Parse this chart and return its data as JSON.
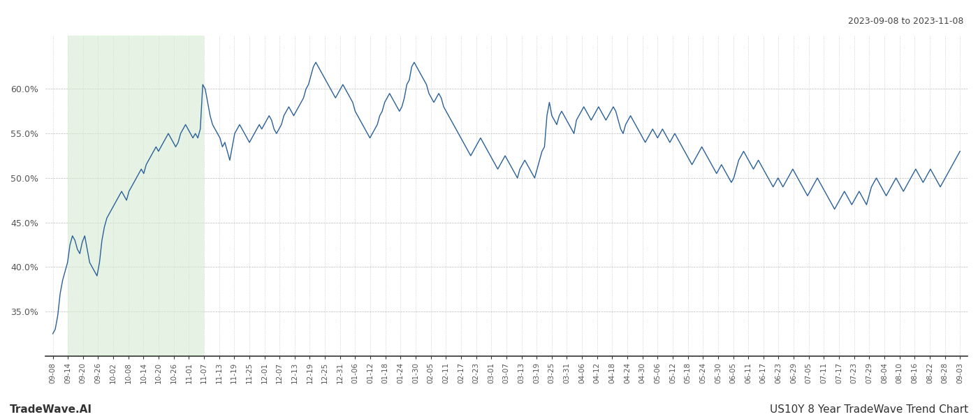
{
  "title_top_right": "2023-09-08 to 2023-11-08",
  "title_bottom_left": "TradeWave.AI",
  "title_bottom_right": "US10Y 8 Year TradeWave Trend Chart",
  "line_color": "#2a6099",
  "shade_color": "#d6ecd2",
  "shade_alpha": 0.6,
  "ylim": [
    30.0,
    66.0
  ],
  "yticks": [
    35.0,
    40.0,
    45.0,
    50.0,
    55.0,
    60.0
  ],
  "x_labels": [
    "09-08",
    "09-14",
    "09-20",
    "09-26",
    "10-02",
    "10-08",
    "10-14",
    "10-20",
    "10-26",
    "11-01",
    "11-07",
    "11-13",
    "11-19",
    "11-25",
    "12-01",
    "12-07",
    "12-13",
    "12-19",
    "12-25",
    "12-31",
    "01-06",
    "01-12",
    "01-18",
    "01-24",
    "01-30",
    "02-05",
    "02-11",
    "02-17",
    "02-23",
    "03-01",
    "03-07",
    "03-13",
    "03-19",
    "03-25",
    "03-31",
    "04-06",
    "04-12",
    "04-18",
    "04-24",
    "04-30",
    "05-06",
    "05-12",
    "05-18",
    "05-24",
    "05-30",
    "06-05",
    "06-11",
    "06-17",
    "06-23",
    "06-29",
    "07-05",
    "07-11",
    "07-17",
    "07-23",
    "07-29",
    "08-04",
    "08-10",
    "08-16",
    "08-22",
    "08-28",
    "09-03"
  ],
  "shade_start_label": "09-14",
  "shade_end_label": "11-07",
  "y_values": [
    32.5,
    33.0,
    34.5,
    37.0,
    38.5,
    39.5,
    40.5,
    42.5,
    43.5,
    43.0,
    42.0,
    41.5,
    42.8,
    43.5,
    42.0,
    40.5,
    40.0,
    39.5,
    39.0,
    40.5,
    43.0,
    44.5,
    45.5,
    46.0,
    46.5,
    47.0,
    47.5,
    48.0,
    48.5,
    48.0,
    47.5,
    48.5,
    49.0,
    49.5,
    50.0,
    50.5,
    51.0,
    50.5,
    51.5,
    52.0,
    52.5,
    53.0,
    53.5,
    53.0,
    53.5,
    54.0,
    54.5,
    55.0,
    54.5,
    54.0,
    53.5,
    54.0,
    55.0,
    55.5,
    56.0,
    55.5,
    55.0,
    54.5,
    55.0,
    54.5,
    55.5,
    60.5,
    60.0,
    58.5,
    57.0,
    56.0,
    55.5,
    55.0,
    54.5,
    53.5,
    54.0,
    53.0,
    52.0,
    53.5,
    55.0,
    55.5,
    56.0,
    55.5,
    55.0,
    54.5,
    54.0,
    54.5,
    55.0,
    55.5,
    56.0,
    55.5,
    56.0,
    56.5,
    57.0,
    56.5,
    55.5,
    55.0,
    55.5,
    56.0,
    57.0,
    57.5,
    58.0,
    57.5,
    57.0,
    57.5,
    58.0,
    58.5,
    59.0,
    60.0,
    60.5,
    61.5,
    62.5,
    63.0,
    62.5,
    62.0,
    61.5,
    61.0,
    60.5,
    60.0,
    59.5,
    59.0,
    59.5,
    60.0,
    60.5,
    60.0,
    59.5,
    59.0,
    58.5,
    57.5,
    57.0,
    56.5,
    56.0,
    55.5,
    55.0,
    54.5,
    55.0,
    55.5,
    56.0,
    57.0,
    57.5,
    58.5,
    59.0,
    59.5,
    59.0,
    58.5,
    58.0,
    57.5,
    58.0,
    59.0,
    60.5,
    61.0,
    62.5,
    63.0,
    62.5,
    62.0,
    61.5,
    61.0,
    60.5,
    59.5,
    59.0,
    58.5,
    59.0,
    59.5,
    59.0,
    58.0,
    57.5,
    57.0,
    56.5,
    56.0,
    55.5,
    55.0,
    54.5,
    54.0,
    53.5,
    53.0,
    52.5,
    53.0,
    53.5,
    54.0,
    54.5,
    54.0,
    53.5,
    53.0,
    52.5,
    52.0,
    51.5,
    51.0,
    51.5,
    52.0,
    52.5,
    52.0,
    51.5,
    51.0,
    50.5,
    50.0,
    51.0,
    51.5,
    52.0,
    51.5,
    51.0,
    50.5,
    50.0,
    51.0,
    52.0,
    53.0,
    53.5,
    57.0,
    58.5,
    57.0,
    56.5,
    56.0,
    57.0,
    57.5,
    57.0,
    56.5,
    56.0,
    55.5,
    55.0,
    56.5,
    57.0,
    57.5,
    58.0,
    57.5,
    57.0,
    56.5,
    57.0,
    57.5,
    58.0,
    57.5,
    57.0,
    56.5,
    57.0,
    57.5,
    58.0,
    57.5,
    56.5,
    55.5,
    55.0,
    56.0,
    56.5,
    57.0,
    56.5,
    56.0,
    55.5,
    55.0,
    54.5,
    54.0,
    54.5,
    55.0,
    55.5,
    55.0,
    54.5,
    55.0,
    55.5,
    55.0,
    54.5,
    54.0,
    54.5,
    55.0,
    54.5,
    54.0,
    53.5,
    53.0,
    52.5,
    52.0,
    51.5,
    52.0,
    52.5,
    53.0,
    53.5,
    53.0,
    52.5,
    52.0,
    51.5,
    51.0,
    50.5,
    51.0,
    51.5,
    51.0,
    50.5,
    50.0,
    49.5,
    50.0,
    51.0,
    52.0,
    52.5,
    53.0,
    52.5,
    52.0,
    51.5,
    51.0,
    51.5,
    52.0,
    51.5,
    51.0,
    50.5,
    50.0,
    49.5,
    49.0,
    49.5,
    50.0,
    49.5,
    49.0,
    49.5,
    50.0,
    50.5,
    51.0,
    50.5,
    50.0,
    49.5,
    49.0,
    48.5,
    48.0,
    48.5,
    49.0,
    49.5,
    50.0,
    49.5,
    49.0,
    48.5,
    48.0,
    47.5,
    47.0,
    46.5,
    47.0,
    47.5,
    48.0,
    48.5,
    48.0,
    47.5,
    47.0,
    47.5,
    48.0,
    48.5,
    48.0,
    47.5,
    47.0,
    48.0,
    49.0,
    49.5,
    50.0,
    49.5,
    49.0,
    48.5,
    48.0,
    48.5,
    49.0,
    49.5,
    50.0,
    49.5,
    49.0,
    48.5,
    49.0,
    49.5,
    50.0,
    50.5,
    51.0,
    50.5,
    50.0,
    49.5,
    50.0,
    50.5,
    51.0,
    50.5,
    50.0,
    49.5,
    49.0,
    49.5,
    50.0,
    50.5,
    51.0,
    51.5,
    52.0,
    52.5,
    53.0
  ]
}
